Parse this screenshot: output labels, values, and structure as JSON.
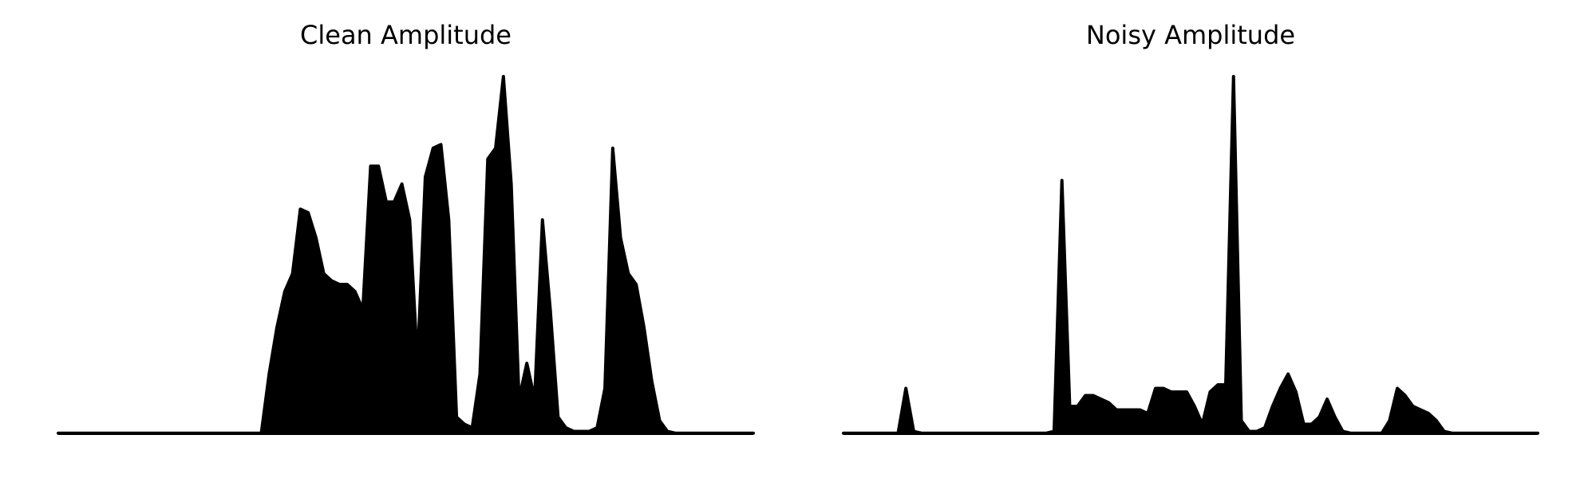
{
  "chart_data": [
    {
      "type": "area",
      "title": "Clean Amplitude",
      "color": "#000000",
      "ylim": [
        0,
        1
      ],
      "values": [
        0.005,
        0.005,
        0.005,
        0.005,
        0.005,
        0.005,
        0.005,
        0.005,
        0.005,
        0.005,
        0.005,
        0.005,
        0.005,
        0.005,
        0.005,
        0.005,
        0.005,
        0.005,
        0.005,
        0.005,
        0.005,
        0.005,
        0.005,
        0.005,
        0.005,
        0.005,
        0.005,
        0.17,
        0.3,
        0.4,
        0.45,
        0.63,
        0.62,
        0.55,
        0.45,
        0.43,
        0.42,
        0.42,
        0.4,
        0.35,
        0.75,
        0.75,
        0.65,
        0.65,
        0.7,
        0.6,
        0.2,
        0.72,
        0.8,
        0.81,
        0.6,
        0.05,
        0.03,
        0.02,
        0.17,
        0.77,
        0.8,
        1.0,
        0.7,
        0.1,
        0.2,
        0.1,
        0.6,
        0.35,
        0.05,
        0.02,
        0.01,
        0.01,
        0.01,
        0.02,
        0.13,
        0.8,
        0.55,
        0.45,
        0.42,
        0.3,
        0.15,
        0.04,
        0.01,
        0.005,
        0.005,
        0.005,
        0.005,
        0.005,
        0.005,
        0.005,
        0.005,
        0.005,
        0.005,
        0.005
      ]
    },
    {
      "type": "area",
      "title": "Noisy Amplitude",
      "color": "#000000",
      "ylim": [
        0,
        1
      ],
      "values": [
        0.005,
        0.005,
        0.005,
        0.005,
        0.005,
        0.005,
        0.005,
        0.005,
        0.13,
        0.01,
        0.005,
        0.005,
        0.005,
        0.005,
        0.005,
        0.005,
        0.005,
        0.005,
        0.005,
        0.005,
        0.005,
        0.005,
        0.005,
        0.005,
        0.005,
        0.005,
        0.005,
        0.01,
        0.71,
        0.08,
        0.08,
        0.11,
        0.11,
        0.1,
        0.09,
        0.07,
        0.07,
        0.07,
        0.07,
        0.06,
        0.13,
        0.13,
        0.12,
        0.12,
        0.12,
        0.08,
        0.03,
        0.12,
        0.14,
        0.14,
        1.0,
        0.04,
        0.01,
        0.01,
        0.02,
        0.08,
        0.13,
        0.17,
        0.12,
        0.03,
        0.03,
        0.05,
        0.1,
        0.05,
        0.01,
        0.005,
        0.005,
        0.005,
        0.005,
        0.005,
        0.04,
        0.13,
        0.11,
        0.08,
        0.07,
        0.06,
        0.04,
        0.01,
        0.005,
        0.005,
        0.005,
        0.005,
        0.005,
        0.005,
        0.005,
        0.005,
        0.005,
        0.005,
        0.005,
        0.005
      ]
    }
  ]
}
